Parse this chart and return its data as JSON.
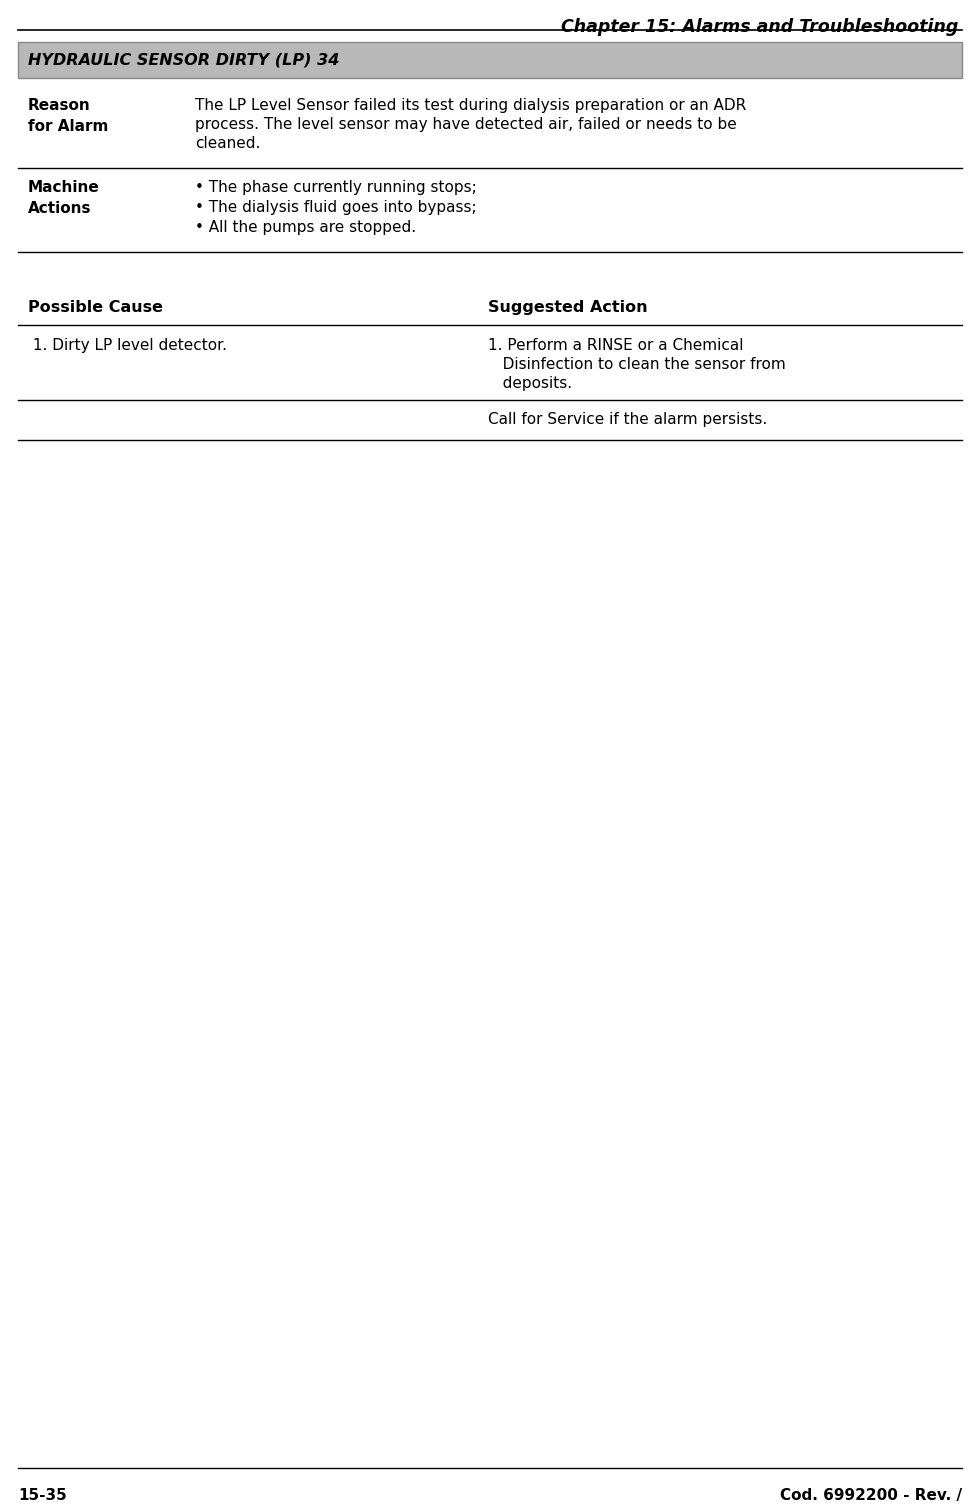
{
  "page_title": "Chapter 15: Alarms and Troubleshooting",
  "alarm_box_title": "HYDRAULIC SENSOR DIRTY (LP) 34",
  "alarm_box_bg": "#b8b8b8",
  "alarm_box_border": "#888888",
  "reason_label": "Reason\nfor Alarm",
  "reason_lines": [
    "The LP Level Sensor failed its test during dialysis preparation or an ADR",
    "process. The level sensor may have detected air, failed or needs to be",
    "cleaned."
  ],
  "machine_label": "Machine\nActions",
  "machine_bullets": [
    "• The phase currently running stops;",
    "• The dialysis fluid goes into bypass;",
    "• All the pumps are stopped."
  ],
  "possible_cause_header": "Possible Cause",
  "suggested_action_header": "Suggested Action",
  "cause_1": " 1. Dirty LP level detector.",
  "action_1_lines": [
    "1. Perform a RINSE or a Chemical",
    "   Disinfection to clean the sensor from",
    "   deposits."
  ],
  "action_2": "Call for Service if the alarm persists.",
  "footer_left": "15-35",
  "footer_right": "Cod. 6992200 - Rev. /",
  "bg_color": "#ffffff",
  "text_color": "#000000",
  "line_color": "#000000"
}
